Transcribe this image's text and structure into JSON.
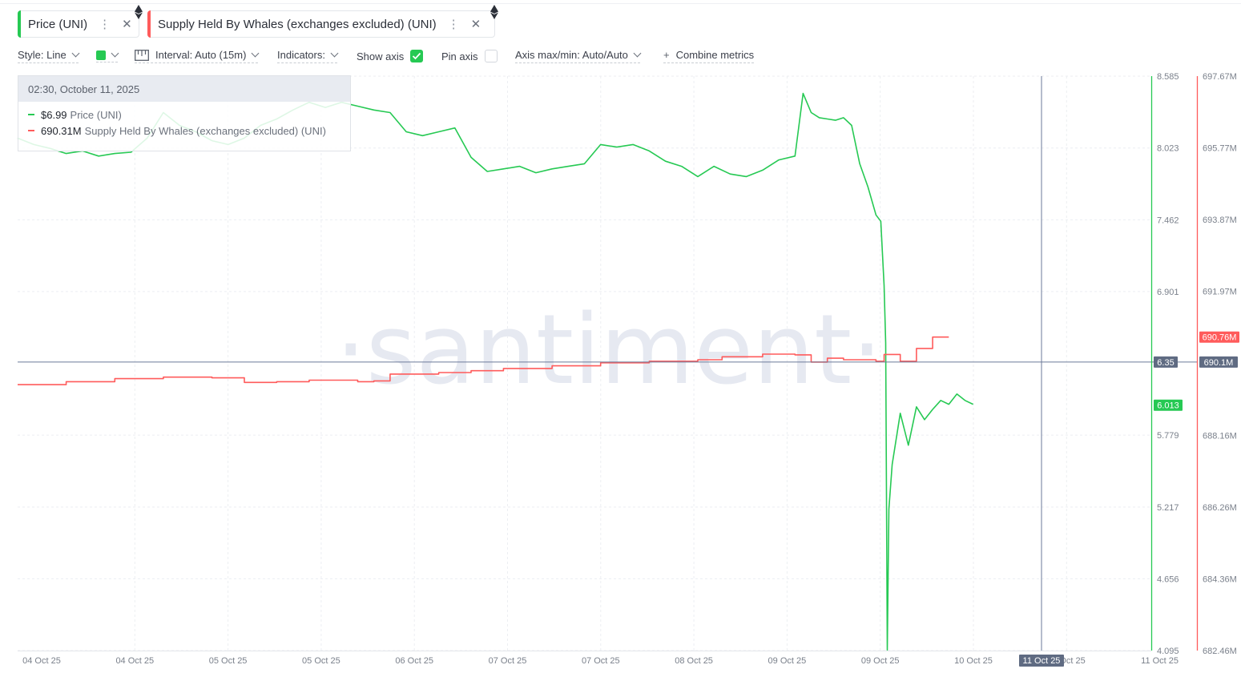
{
  "metrics": [
    {
      "label": "Price (UNI)",
      "color": "#26c953",
      "menu_icon": "vertical-dots-icon",
      "close_icon": "close-icon"
    },
    {
      "label": "Supply Held By Whales (exchanges excluded) (UNI)",
      "color": "#ff5b5b",
      "menu_icon": "vertical-dots-icon",
      "close_icon": "close-icon"
    }
  ],
  "toolbar": {
    "style": "Style: Line",
    "interval": "Interval: Auto (15m)",
    "indicators": "Indicators:",
    "show_axis": "Show axis",
    "show_axis_checked": true,
    "pin_axis": "Pin axis",
    "pin_axis_checked": false,
    "axis_maxmin": "Axis max/min: Auto/Auto",
    "combine": "Combine metrics",
    "color_swatch": "#26c953"
  },
  "tooltip": {
    "date": "02:30, October 11, 2025",
    "rows": [
      {
        "value": "$6.99",
        "name": "Price (UNI)",
        "color": "#26c953"
      },
      {
        "value": "690.31M",
        "name": "Supply Held By Whales (exchanges excluded) (UNI)",
        "color": "#ff5b5b"
      }
    ]
  },
  "watermark": "·santiment·",
  "chart_data": {
    "type": "line",
    "x_tick_labels": [
      "04 Oct 25",
      "04 Oct 25",
      "05 Oct 25",
      "05 Oct 25",
      "06 Oct 25",
      "07 Oct 25",
      "07 Oct 25",
      "08 Oct 25",
      "09 Oct 25",
      "09 Oct 25",
      "10 Oct 25",
      "11 Oct 25",
      "11 Oct 25"
    ],
    "x_range": [
      0,
      7
    ],
    "crosshair_x_label": "11 Oct 25",
    "price_axis": {
      "ticks": [
        "8.585",
        "8.023",
        "7.462",
        "6.901",
        "5.779",
        "5.217",
        "4.656",
        "4.095"
      ],
      "ylim": [
        4.095,
        8.585
      ],
      "crosshair_label": "6.35",
      "last_label": "6.013",
      "color": "#26c953"
    },
    "supply_axis": {
      "ticks": [
        "697.67M",
        "695.77M",
        "693.87M",
        "691.97M",
        "688.16M",
        "686.26M",
        "684.36M",
        "682.46M"
      ],
      "ylim": [
        682.46,
        697.67
      ],
      "crosshair_label": "690.1M",
      "last_label": "690.76M",
      "color": "#ff5b5b"
    },
    "series": [
      {
        "name": "Price (UNI)",
        "color": "#26c953",
        "axis": "price",
        "points": [
          [
            0.0,
            8.1
          ],
          [
            0.1,
            8.05
          ],
          [
            0.2,
            8.02
          ],
          [
            0.3,
            7.98
          ],
          [
            0.4,
            8.0
          ],
          [
            0.5,
            7.96
          ],
          [
            0.6,
            7.98
          ],
          [
            0.7,
            7.99
          ],
          [
            0.8,
            8.1
          ],
          [
            0.9,
            8.3
          ],
          [
            1.0,
            8.2
          ],
          [
            1.1,
            8.15
          ],
          [
            1.2,
            8.08
          ],
          [
            1.3,
            8.05
          ],
          [
            1.4,
            8.1
          ],
          [
            1.5,
            8.2
          ],
          [
            1.6,
            8.25
          ],
          [
            1.7,
            8.32
          ],
          [
            1.8,
            8.38
          ],
          [
            1.9,
            8.34
          ],
          [
            2.0,
            8.38
          ],
          [
            2.1,
            8.35
          ],
          [
            2.2,
            8.32
          ],
          [
            2.3,
            8.3
          ],
          [
            2.4,
            8.15
          ],
          [
            2.5,
            8.12
          ],
          [
            2.6,
            8.15
          ],
          [
            2.7,
            8.18
          ],
          [
            2.8,
            7.95
          ],
          [
            2.9,
            7.84
          ],
          [
            3.0,
            7.86
          ],
          [
            3.1,
            7.88
          ],
          [
            3.2,
            7.83
          ],
          [
            3.3,
            7.86
          ],
          [
            3.4,
            7.88
          ],
          [
            3.5,
            7.9
          ],
          [
            3.6,
            8.05
          ],
          [
            3.7,
            8.03
          ],
          [
            3.8,
            8.05
          ],
          [
            3.9,
            8.0
          ],
          [
            4.0,
            7.92
          ],
          [
            4.1,
            7.88
          ],
          [
            4.2,
            7.8
          ],
          [
            4.3,
            7.88
          ],
          [
            4.4,
            7.82
          ],
          [
            4.5,
            7.8
          ],
          [
            4.6,
            7.85
          ],
          [
            4.7,
            7.93
          ],
          [
            4.8,
            7.96
          ],
          [
            4.85,
            8.45
          ],
          [
            4.9,
            8.3
          ],
          [
            4.95,
            8.26
          ],
          [
            5.0,
            8.25
          ],
          [
            5.05,
            8.24
          ],
          [
            5.1,
            8.26
          ],
          [
            5.15,
            8.2
          ],
          [
            5.2,
            7.9
          ],
          [
            5.25,
            7.72
          ],
          [
            5.3,
            7.5
          ],
          [
            5.33,
            7.45
          ],
          [
            5.35,
            6.95
          ],
          [
            5.36,
            6.5
          ],
          [
            5.37,
            4.1
          ],
          [
            5.38,
            5.2
          ],
          [
            5.4,
            5.55
          ],
          [
            5.45,
            5.95
          ],
          [
            5.5,
            5.7
          ],
          [
            5.55,
            6.0
          ],
          [
            5.6,
            5.9
          ],
          [
            5.65,
            5.98
          ],
          [
            5.7,
            6.05
          ],
          [
            5.75,
            6.02
          ],
          [
            5.8,
            6.1
          ],
          [
            5.85,
            6.05
          ],
          [
            5.9,
            6.02
          ]
        ]
      },
      {
        "name": "Supply Held By Whales (exchanges excluded) (UNI)",
        "color": "#ff5b5b",
        "axis": "supply",
        "points": [
          [
            0.0,
            689.5
          ],
          [
            0.3,
            689.58
          ],
          [
            0.6,
            689.66
          ],
          [
            0.9,
            689.7
          ],
          [
            1.2,
            689.68
          ],
          [
            1.4,
            689.56
          ],
          [
            1.6,
            689.58
          ],
          [
            1.8,
            689.62
          ],
          [
            2.1,
            689.58
          ],
          [
            2.2,
            689.6
          ],
          [
            2.3,
            689.78
          ],
          [
            2.6,
            689.82
          ],
          [
            2.8,
            689.87
          ],
          [
            3.0,
            689.93
          ],
          [
            3.3,
            690.0
          ],
          [
            3.6,
            690.08
          ],
          [
            3.9,
            690.12
          ],
          [
            4.2,
            690.16
          ],
          [
            4.35,
            690.24
          ],
          [
            4.6,
            690.31
          ],
          [
            4.8,
            690.29
          ],
          [
            4.9,
            690.1
          ],
          [
            5.0,
            690.2
          ],
          [
            5.1,
            690.16
          ],
          [
            5.3,
            690.12
          ],
          [
            5.35,
            690.3
          ],
          [
            5.45,
            690.12
          ],
          [
            5.55,
            690.46
          ],
          [
            5.65,
            690.76
          ],
          [
            5.75,
            690.76
          ]
        ]
      }
    ],
    "grid": true,
    "legend": "top-left"
  }
}
